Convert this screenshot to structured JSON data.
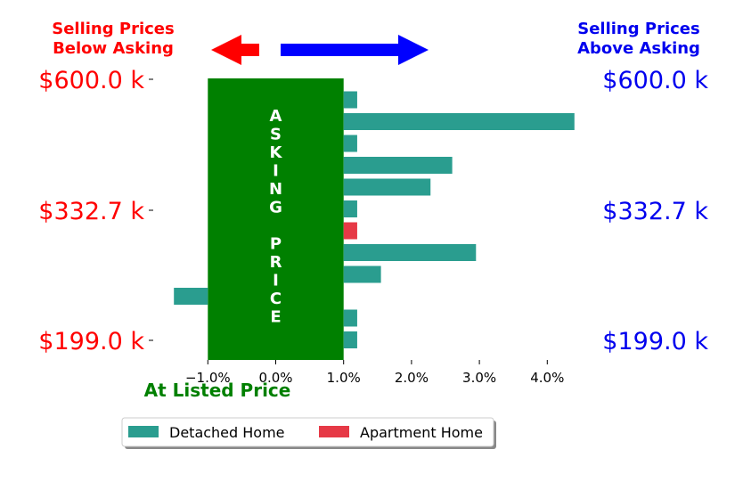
{
  "titles": {
    "below_line1": "Selling Prices",
    "below_line2": "Below Asking",
    "above_line1": "Selling Prices",
    "above_line2": "Above Asking",
    "listed": "At Listed Price",
    "asking_column": [
      "A",
      "S",
      "K",
      "I",
      "N",
      "G",
      "",
      "P",
      "R",
      "I",
      "C",
      "E"
    ]
  },
  "price_labels": {
    "left": [
      "$600.0 k",
      "$332.7 k",
      "$199.0 k"
    ],
    "right": [
      "$600.0 k",
      "$332.7 k",
      "$199.0 k"
    ]
  },
  "colors": {
    "below": "#ff0000",
    "above": "#0000ee",
    "listed": "#008000",
    "asking_fill": "#008000",
    "detached": "#2a9d8f",
    "apartment": "#e63946",
    "left_arrow": "#ff0000",
    "right_arrow": "#0000ff"
  },
  "legend": {
    "items": [
      {
        "label": "Detached Home",
        "color": "#2a9d8f"
      },
      {
        "label": "Apartment Home",
        "color": "#e63946"
      }
    ]
  },
  "chart_data": {
    "type": "bar",
    "orientation": "horizontal",
    "xlim": [
      -1.0,
      4.0
    ],
    "xticks": [
      -1.0,
      0.0,
      1.0,
      2.0,
      3.0,
      4.0
    ],
    "xtick_labels": [
      "−1.0%",
      "0.0%",
      "1.0%",
      "2.0%",
      "3.0%",
      "4.0%"
    ],
    "bars": [
      {
        "value": 1.2,
        "series": "Detached Home"
      },
      {
        "value": 4.4,
        "series": "Detached Home"
      },
      {
        "value": 1.2,
        "series": "Detached Home"
      },
      {
        "value": 2.6,
        "series": "Detached Home"
      },
      {
        "value": 2.28,
        "series": "Detached Home"
      },
      {
        "value": 1.2,
        "series": "Detached Home"
      },
      {
        "value": 1.2,
        "series": "Apartment Home"
      },
      {
        "value": 2.95,
        "series": "Detached Home"
      },
      {
        "value": 1.55,
        "series": "Detached Home"
      },
      {
        "value": -1.5,
        "series": "Detached Home"
      },
      {
        "value": 1.2,
        "series": "Detached Home"
      },
      {
        "value": 1.2,
        "series": "Detached Home"
      }
    ],
    "asking_band": [
      -1.0,
      1.0
    ],
    "legend_position": "bottom-center"
  }
}
